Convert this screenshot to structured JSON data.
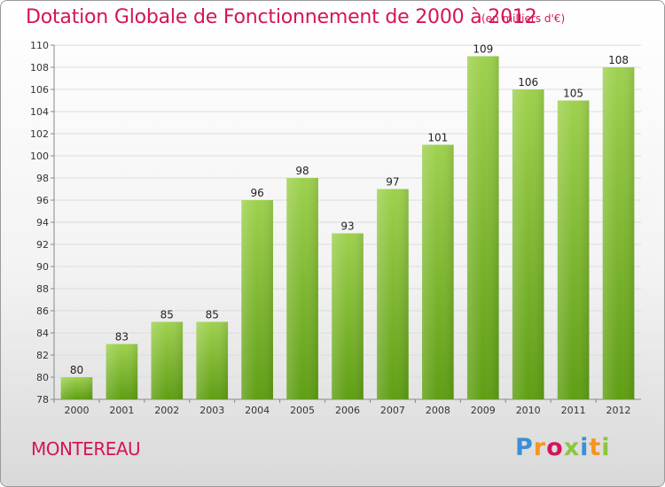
{
  "title": "Dotation Globale de Fonctionnement de 2000 à 2012",
  "subtitle": "(en milliers d'€)",
  "commune": "MONTEREAU",
  "logo": {
    "text": "Proxiti",
    "colors": [
      "#3b8fd4",
      "#f7931e",
      "#d4145a",
      "#8cc63f",
      "#3b8fd4",
      "#f7931e",
      "#8cc63f"
    ]
  },
  "colors": {
    "title": "#d4145a",
    "bar_light": "#9ed14e",
    "bar_dark": "#5f9e14",
    "grid": "#dcdcdc"
  },
  "chart_data": {
    "type": "bar",
    "categories": [
      "2000",
      "2001",
      "2002",
      "2003",
      "2004",
      "2005",
      "2006",
      "2007",
      "2008",
      "2009",
      "2010",
      "2011",
      "2012"
    ],
    "values": [
      80,
      83,
      85,
      85,
      96,
      98,
      93,
      97,
      101,
      109,
      106,
      105,
      108
    ],
    "title": "Dotation Globale de Fonctionnement de 2000 à 2012",
    "ylim": [
      78,
      110
    ],
    "yticks": [
      78,
      80,
      82,
      84,
      86,
      88,
      90,
      92,
      94,
      96,
      98,
      100,
      102,
      104,
      106,
      108,
      110
    ],
    "grid": true
  }
}
